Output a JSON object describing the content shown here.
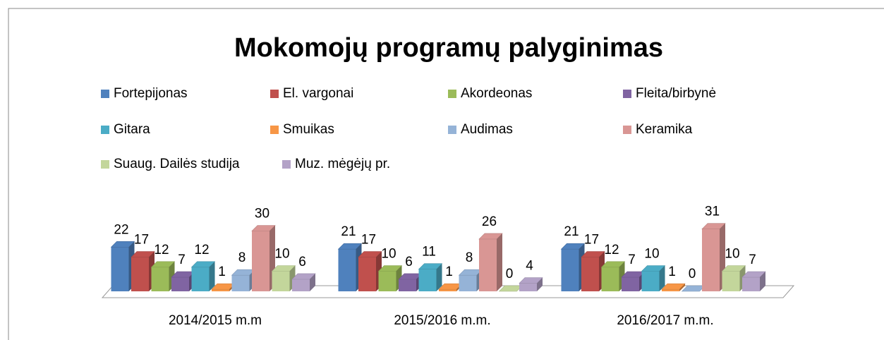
{
  "chart_data": {
    "type": "bar3d",
    "title": "Mokomojų programų palyginimas",
    "categories": [
      "2014/2015 m.m",
      "2015/2016 m.m.",
      "2016/2017 m.m."
    ],
    "series": [
      {
        "name": "Fortepijonas",
        "color": "#4f81bd",
        "values": [
          22,
          21,
          21
        ]
      },
      {
        "name": "El. vargonai",
        "color": "#c0504d",
        "values": [
          17,
          17,
          17
        ]
      },
      {
        "name": "Akordeonas",
        "color": "#9bbb59",
        "values": [
          12,
          10,
          12
        ]
      },
      {
        "name": "Fleita/birbynė",
        "color": "#8064a2",
        "values": [
          7,
          6,
          7
        ]
      },
      {
        "name": "Gitara",
        "color": "#4bacc6",
        "values": [
          12,
          11,
          10
        ]
      },
      {
        "name": "Smuikas",
        "color": "#f79646",
        "values": [
          1,
          1,
          1
        ]
      },
      {
        "name": "Audimas",
        "color": "#95b3d7",
        "values": [
          8,
          8,
          0
        ]
      },
      {
        "name": "Keramika",
        "color": "#d99694",
        "values": [
          30,
          26,
          31
        ]
      },
      {
        "name": "Suaug. Dailės studija",
        "color": "#c3d69b",
        "values": [
          10,
          0,
          10
        ]
      },
      {
        "name": "Muz. mėgėjų pr.",
        "color": "#b3a2c7",
        "values": [
          6,
          4,
          7
        ]
      }
    ],
    "legend": "top"
  }
}
